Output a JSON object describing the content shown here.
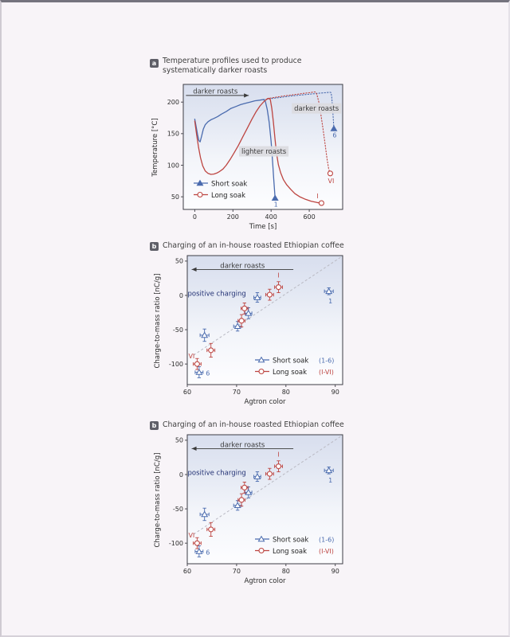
{
  "page": {
    "background": "#f8f4f8"
  },
  "colors": {
    "blue": "#4a6bae",
    "red": "#bd4541",
    "navy": "#233274",
    "trend": "#b9b9c2",
    "axis": "#3d3d45",
    "tick": "#2b2b2b",
    "annotation": "#3a3a3a",
    "labelbox": "#dbdbdf",
    "badge_bg": "#5f5f68"
  },
  "panels": [
    {
      "badge": "a",
      "title": "Temperature profiles used to produce\nsystematically darker roasts"
    },
    {
      "badge": "b",
      "title": "Charging of an in-house roasted Ethiopian coffee"
    },
    {
      "badge": "b",
      "title": "Charging of an in-house roasted Ethiopian coffee"
    }
  ],
  "chart_data": [
    {
      "type": "line",
      "title": "Temperature profiles used to produce systematically darker roasts",
      "xlabel": "Time [s]",
      "ylabel": "Temperature [°C]",
      "xlim": [
        -60,
        775
      ],
      "ylim": [
        30,
        228
      ],
      "xticks": [
        0,
        200,
        400,
        600
      ],
      "yticks": [
        50,
        100,
        150,
        200
      ],
      "grid": false,
      "legend_position": "lower-left-inside",
      "series": [
        {
          "name": "Short soak roast 1",
          "color": "blue",
          "dash": "solid",
          "points": [
            [
              0,
              173
            ],
            [
              8,
              160
            ],
            [
              15,
              148
            ],
            [
              22,
              139
            ],
            [
              28,
              137
            ],
            [
              36,
              146
            ],
            [
              45,
              157
            ],
            [
              55,
              164
            ],
            [
              70,
              169
            ],
            [
              85,
              172
            ],
            [
              100,
              174
            ],
            [
              120,
              177
            ],
            [
              140,
              181
            ],
            [
              165,
              185
            ],
            [
              190,
              190
            ],
            [
              215,
              193
            ],
            [
              240,
              196
            ],
            [
              265,
              198
            ],
            [
              290,
              200
            ],
            [
              315,
              202
            ],
            [
              340,
              203
            ],
            [
              360,
              204
            ],
            [
              370,
              201
            ],
            [
              380,
              188
            ],
            [
              390,
              168
            ],
            [
              400,
              138
            ],
            [
              408,
              105
            ],
            [
              414,
              78
            ],
            [
              419,
              57
            ],
            [
              421,
              48
            ]
          ],
          "end_marker": {
            "shape": "triangle-filled",
            "x": 421,
            "y": 48,
            "label": "1",
            "label_dx": 1,
            "label_dy": 11
          }
        },
        {
          "name": "Short soak roast 6",
          "color": "blue",
          "dash": "dotted",
          "points": [
            [
              360,
              204
            ],
            [
              400,
              205.5
            ],
            [
              450,
              207.5
            ],
            [
              500,
              209.5
            ],
            [
              550,
              211
            ],
            [
              600,
              212.5
            ],
            [
              650,
              214
            ],
            [
              690,
              215
            ],
            [
              708,
              215.5
            ],
            [
              714,
              215
            ],
            [
              718,
              208
            ],
            [
              722,
              192
            ],
            [
              726,
              172
            ],
            [
              729,
              158
            ]
          ],
          "end_marker": {
            "shape": "triangle-filled",
            "x": 729,
            "y": 158,
            "label": "6",
            "label_dx": 1,
            "label_dy": 11
          }
        },
        {
          "name": "Long soak roast I",
          "color": "red",
          "dash": "solid",
          "points": [
            [
              0,
              170
            ],
            [
              10,
              148
            ],
            [
              20,
              128
            ],
            [
              30,
              112
            ],
            [
              42,
              99
            ],
            [
              55,
              91
            ],
            [
              70,
              87
            ],
            [
              85,
              85.5
            ],
            [
              100,
              86
            ],
            [
              115,
              87.5
            ],
            [
              130,
              90
            ],
            [
              148,
              94
            ],
            [
              165,
              100
            ],
            [
              185,
              109
            ],
            [
              205,
              119
            ],
            [
              228,
              131
            ],
            [
              252,
              145
            ],
            [
              276,
              159
            ],
            [
              300,
              173
            ],
            [
              322,
              185
            ],
            [
              342,
              194
            ],
            [
              360,
              200
            ],
            [
              375,
              204
            ],
            [
              388,
              206
            ],
            [
              396,
              204
            ],
            [
              404,
              190
            ],
            [
              412,
              168
            ],
            [
              420,
              143
            ],
            [
              428,
              120
            ],
            [
              438,
              101
            ],
            [
              450,
              88
            ],
            [
              465,
              77
            ],
            [
              482,
              69
            ],
            [
              502,
              62
            ],
            [
              525,
              55
            ],
            [
              550,
              50
            ],
            [
              580,
              46
            ],
            [
              610,
              43
            ],
            [
              640,
              41
            ],
            [
              660,
              40
            ]
          ],
          "end_marker": {
            "shape": "circle-open",
            "x": 664,
            "y": 40,
            "label": "I",
            "label_dx": -5,
            "label_dy": -6
          }
        },
        {
          "name": "Long soak roast VI",
          "color": "red",
          "dash": "dotted",
          "points": [
            [
              380,
              205.5
            ],
            [
              420,
              207.5
            ],
            [
              460,
              209.5
            ],
            [
              500,
              211
            ],
            [
              540,
              212.5
            ],
            [
              575,
              214
            ],
            [
              605,
              215
            ],
            [
              625,
              216
            ],
            [
              633,
              216
            ],
            [
              640,
              212
            ],
            [
              650,
              200
            ],
            [
              660,
              182
            ],
            [
              672,
              158
            ],
            [
              683,
              133
            ],
            [
              693,
              110
            ],
            [
              702,
              94
            ],
            [
              708,
              88
            ]
          ],
          "end_marker": {
            "shape": "circle-open",
            "x": 710,
            "y": 87,
            "label": "VI",
            "label_dx": 1,
            "label_dy": 12
          }
        }
      ],
      "legend": {
        "entries": [
          {
            "label": "Short soak",
            "marker": "triangle-filled",
            "color": "blue"
          },
          {
            "label": "Long soak",
            "marker": "circle-open",
            "color": "red"
          }
        ]
      },
      "annotations": [
        {
          "type": "arrow",
          "text": "darker roasts",
          "tx": 108,
          "ty": 217.5,
          "x1": -46,
          "y1": 210.5,
          "x2": 283,
          "y2": 210.5,
          "head": "right"
        },
        {
          "type": "box",
          "text": "lighter roasts",
          "x": 362,
          "y": 122
        },
        {
          "type": "box",
          "text": "darker roasts",
          "x": 638,
          "y": 190
        }
      ]
    },
    {
      "type": "scatter",
      "title": "Charging of an in-house roasted Ethiopian coffee",
      "xlabel": "Agtron color",
      "ylabel": "Charge-to-mass ratio [nC/g]",
      "xlim": [
        60,
        91.5
      ],
      "ylim": [
        -130,
        58
      ],
      "xticks": [
        60,
        70,
        80,
        90
      ],
      "yticks": [
        50,
        0,
        -50,
        -100
      ],
      "grid": false,
      "trend": {
        "x1": 61.3,
        "y1": -87,
        "x2": 91.4,
        "y2": 57,
        "style": "dashed"
      },
      "series": [
        {
          "name": "Short soak",
          "ids": [
            "1",
            "2",
            "3",
            "4",
            "5",
            "6"
          ],
          "marker": "triangle-open",
          "color": "blue",
          "points": [
            {
              "x": 88.7,
              "y": 6,
              "xerr": 0.9,
              "yerr": 5,
              "label": "1",
              "label_dx": 2,
              "label_dy": 15
            },
            {
              "x": 74.2,
              "y": -3,
              "xerr": 0.7,
              "yerr": 7
            },
            {
              "x": 72.4,
              "y": -26,
              "xerr": 0.7,
              "yerr": 8
            },
            {
              "x": 70.2,
              "y": -45,
              "xerr": 0.8,
              "yerr": 7
            },
            {
              "x": 63.5,
              "y": -58,
              "xerr": 0.9,
              "yerr": 9
            },
            {
              "x": 62.4,
              "y": -112,
              "xerr": 0.8,
              "yerr": 8,
              "label": "6",
              "label_dx": 11,
              "label_dy": 4
            }
          ]
        },
        {
          "name": "Long soak",
          "ids": [
            "I",
            "II",
            "III",
            "IV",
            "V",
            "VI"
          ],
          "marker": "circle-open",
          "color": "red",
          "points": [
            {
              "x": 78.5,
              "y": 12,
              "xerr": 0.8,
              "yerr": 8,
              "label": "I",
              "label_dx": 0,
              "label_dy": -12
            },
            {
              "x": 76.7,
              "y": 1,
              "xerr": 0.8,
              "yerr": 8
            },
            {
              "x": 71.6,
              "y": -19,
              "xerr": 0.7,
              "yerr": 8
            },
            {
              "x": 71.0,
              "y": -37,
              "xerr": 0.7,
              "yerr": 9
            },
            {
              "x": 64.8,
              "y": -80,
              "xerr": 0.8,
              "yerr": 10
            },
            {
              "x": 62.0,
              "y": -100,
              "xerr": 0.8,
              "yerr": 8,
              "label": "VI",
              "label_dx": -7,
              "label_dy": -7
            }
          ]
        }
      ],
      "legend": {
        "entries": [
          {
            "label": "Short soak",
            "suffix": "(1-6)",
            "marker": "triangle-open",
            "color": "blue"
          },
          {
            "label": "Long soak",
            "suffix": "(I-VI)",
            "marker": "circle-open",
            "color": "red"
          }
        ]
      },
      "annotations": [
        {
          "type": "arrow",
          "text": "darker roasts",
          "tx": 71.2,
          "ty": 43.6,
          "x1": 81.5,
          "y1": 37.8,
          "x2": 60.9,
          "y2": 37.8,
          "head": "left"
        },
        {
          "type": "text",
          "text": "positive charging",
          "x": 66.0,
          "y": 2.9,
          "color": "navy"
        }
      ]
    },
    {
      "type": "scatter",
      "title": "Charging of an in-house roasted Ethiopian coffee",
      "xlabel": "Agtron color",
      "ylabel": "Charge-to-mass ratio [nC/g]",
      "xlim": [
        60,
        91.5
      ],
      "ylim": [
        -130,
        58
      ],
      "xticks": [
        60,
        70,
        80,
        90
      ],
      "yticks": [
        50,
        0,
        -50,
        -100
      ],
      "grid": false,
      "trend": {
        "x1": 61.3,
        "y1": -87,
        "x2": 91.4,
        "y2": 57,
        "style": "dashed"
      },
      "series": [
        {
          "name": "Short soak",
          "ids": [
            "1",
            "2",
            "3",
            "4",
            "5",
            "6"
          ],
          "marker": "triangle-open",
          "color": "blue",
          "points": [
            {
              "x": 88.7,
              "y": 6,
              "xerr": 0.9,
              "yerr": 5,
              "label": "1",
              "label_dx": 2,
              "label_dy": 15
            },
            {
              "x": 74.2,
              "y": -3,
              "xerr": 0.7,
              "yerr": 7
            },
            {
              "x": 72.4,
              "y": -26,
              "xerr": 0.7,
              "yerr": 8
            },
            {
              "x": 70.2,
              "y": -45,
              "xerr": 0.8,
              "yerr": 7
            },
            {
              "x": 63.5,
              "y": -58,
              "xerr": 0.9,
              "yerr": 9
            },
            {
              "x": 62.4,
              "y": -112,
              "xerr": 0.8,
              "yerr": 8,
              "label": "6",
              "label_dx": 11,
              "label_dy": 4
            }
          ]
        },
        {
          "name": "Long soak",
          "ids": [
            "I",
            "II",
            "III",
            "IV",
            "V",
            "VI"
          ],
          "marker": "circle-open",
          "color": "red",
          "points": [
            {
              "x": 78.5,
              "y": 12,
              "xerr": 0.8,
              "yerr": 8,
              "label": "I",
              "label_dx": 0,
              "label_dy": -12
            },
            {
              "x": 76.7,
              "y": 1,
              "xerr": 0.8,
              "yerr": 8
            },
            {
              "x": 71.6,
              "y": -19,
              "xerr": 0.7,
              "yerr": 8
            },
            {
              "x": 71.0,
              "y": -37,
              "xerr": 0.7,
              "yerr": 9
            },
            {
              "x": 64.8,
              "y": -80,
              "xerr": 0.8,
              "yerr": 10
            },
            {
              "x": 62.0,
              "y": -100,
              "xerr": 0.8,
              "yerr": 8,
              "label": "VI",
              "label_dx": -7,
              "label_dy": -7
            }
          ]
        }
      ],
      "legend": {
        "entries": [
          {
            "label": "Short soak",
            "suffix": "(1-6)",
            "marker": "triangle-open",
            "color": "blue"
          },
          {
            "label": "Long soak",
            "suffix": "(I-VI)",
            "marker": "circle-open",
            "color": "red"
          }
        ]
      },
      "annotations": [
        {
          "type": "arrow",
          "text": "darker roasts",
          "tx": 71.2,
          "ty": 43.6,
          "x1": 81.5,
          "y1": 37.8,
          "x2": 60.9,
          "y2": 37.8,
          "head": "left"
        },
        {
          "type": "text",
          "text": "positive charging",
          "x": 66.0,
          "y": 2.9,
          "color": "navy"
        }
      ]
    }
  ]
}
